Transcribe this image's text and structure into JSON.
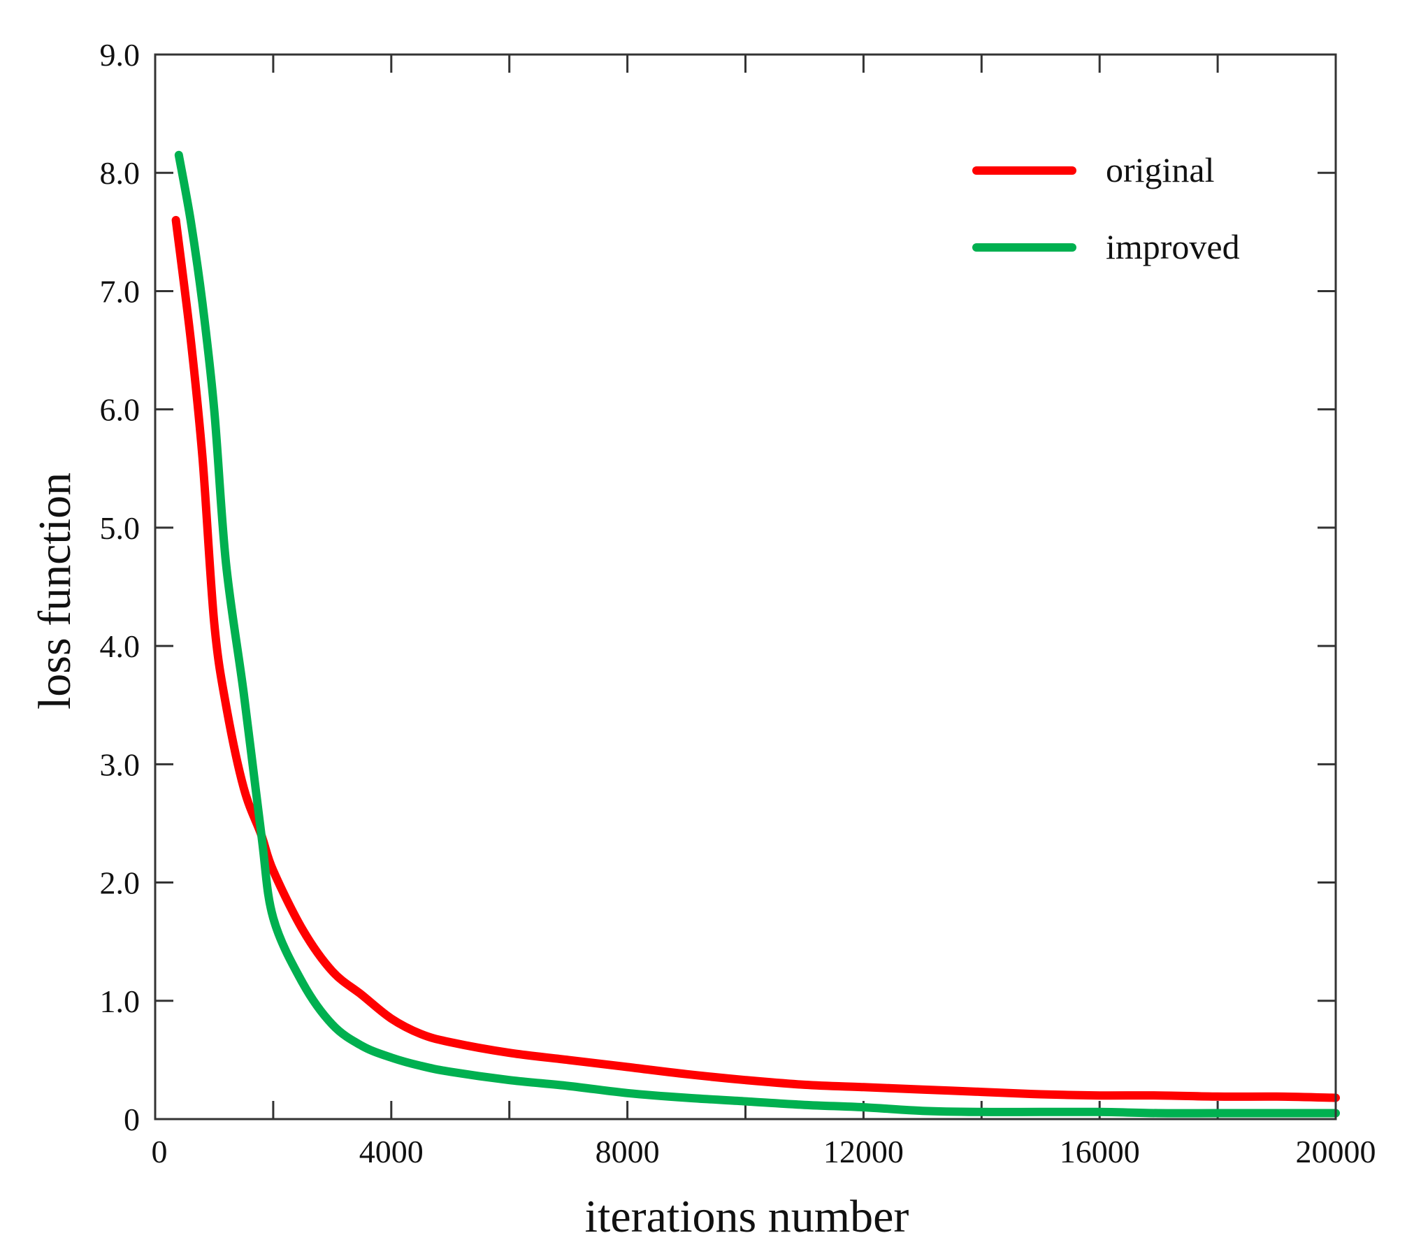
{
  "chart_data": {
    "type": "line",
    "title": "",
    "xlabel": "iterations number",
    "ylabel": "loss function",
    "xlim": [
      0,
      20000
    ],
    "ylim": [
      0,
      9.0
    ],
    "xticks": [
      0,
      4000,
      8000,
      12000,
      16000,
      20000
    ],
    "xtick_labels": [
      "0",
      "4000",
      "8000",
      "12000",
      "16000",
      "20000"
    ],
    "yticks": [
      0,
      1.0,
      2.0,
      3.0,
      4.0,
      5.0,
      6.0,
      7.0,
      8.0,
      9.0
    ],
    "ytick_labels": [
      "0",
      "1.0",
      "2.0",
      "3.0",
      "4.0",
      "5.0",
      "6.0",
      "7.0",
      "8.0",
      "9.0"
    ],
    "grid": false,
    "legend_position": "top-right",
    "series": [
      {
        "name": "original",
        "color": "#ff0000",
        "x": [
          350,
          600,
          800,
          1000,
          1200,
          1500,
          1800,
          2000,
          2500,
          3000,
          3500,
          4000,
          4500,
          5000,
          6000,
          7000,
          8000,
          9000,
          10000,
          11000,
          12000,
          13000,
          14000,
          15000,
          16000,
          17000,
          18000,
          19000,
          20000
        ],
        "values": [
          7.6,
          6.6,
          5.6,
          4.2,
          3.5,
          2.8,
          2.4,
          2.1,
          1.6,
          1.25,
          1.05,
          0.85,
          0.72,
          0.65,
          0.56,
          0.5,
          0.44,
          0.38,
          0.33,
          0.29,
          0.27,
          0.25,
          0.23,
          0.21,
          0.2,
          0.2,
          0.19,
          0.19,
          0.18
        ]
      },
      {
        "name": "improved",
        "color": "#00b050",
        "x": [
          400,
          600,
          800,
          1000,
          1200,
          1500,
          1800,
          2000,
          2500,
          3000,
          3500,
          4000,
          4500,
          5000,
          6000,
          7000,
          8000,
          9000,
          10000,
          11000,
          12000,
          13000,
          14000,
          15000,
          16000,
          17000,
          18000,
          19000,
          20000
        ],
        "values": [
          8.15,
          7.6,
          6.9,
          6.0,
          4.7,
          3.6,
          2.4,
          1.7,
          1.15,
          0.8,
          0.62,
          0.52,
          0.45,
          0.4,
          0.33,
          0.28,
          0.22,
          0.18,
          0.15,
          0.12,
          0.1,
          0.07,
          0.06,
          0.06,
          0.06,
          0.05,
          0.05,
          0.05,
          0.05
        ]
      }
    ]
  }
}
